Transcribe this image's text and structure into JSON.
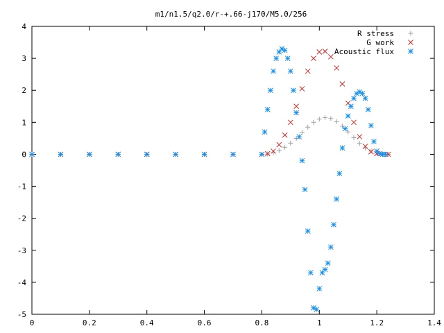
{
  "chart_data": {
    "type": "scatter",
    "title": "m1/n1.5/q2.0/r-+.66-j170/M5.0/256",
    "xlabel": "",
    "ylabel": "",
    "xlim": [
      0,
      1.4
    ],
    "ylim": [
      -5,
      4
    ],
    "x_ticks": [
      "0",
      "0.2",
      "0.4",
      "0.6",
      "0.8",
      "1",
      "1.2",
      "1.4"
    ],
    "y_ticks": [
      "4",
      "3",
      "2",
      "1",
      "0",
      "-1",
      "-2",
      "-3",
      "-4",
      "-5"
    ],
    "grid": false,
    "legend_position": "top-right",
    "series": [
      {
        "name": "R stress",
        "marker": "plus",
        "color": "#a0a0a0",
        "x": [
          0.0,
          0.1,
          0.2,
          0.3,
          0.4,
          0.5,
          0.6,
          0.7,
          0.8,
          0.82,
          0.84,
          0.86,
          0.88,
          0.9,
          0.92,
          0.94,
          0.96,
          0.98,
          1.0,
          1.02,
          1.04,
          1.06,
          1.08,
          1.1,
          1.12,
          1.14,
          1.16,
          1.18,
          1.2,
          1.22,
          1.24
        ],
        "y": [
          0,
          0,
          0,
          0,
          0,
          0,
          0,
          0,
          0,
          0.01,
          0.05,
          0.12,
          0.22,
          0.35,
          0.5,
          0.68,
          0.85,
          1.0,
          1.1,
          1.15,
          1.12,
          1.02,
          0.88,
          0.7,
          0.52,
          0.34,
          0.2,
          0.1,
          0.04,
          0.01,
          0
        ]
      },
      {
        "name": "G work",
        "marker": "cross",
        "color": "#cc2a2a",
        "x": [
          0.0,
          0.1,
          0.2,
          0.3,
          0.4,
          0.5,
          0.6,
          0.7,
          0.8,
          0.82,
          0.84,
          0.86,
          0.88,
          0.9,
          0.92,
          0.94,
          0.96,
          0.98,
          1.0,
          1.02,
          1.04,
          1.06,
          1.08,
          1.1,
          1.12,
          1.14,
          1.16,
          1.18,
          1.2,
          1.22,
          1.24
        ],
        "y": [
          0,
          0,
          0,
          0,
          0,
          0,
          0,
          0,
          0,
          0.02,
          0.1,
          0.3,
          0.6,
          1.0,
          1.5,
          2.05,
          2.6,
          3.0,
          3.2,
          3.22,
          3.05,
          2.7,
          2.2,
          1.6,
          1.0,
          0.55,
          0.25,
          0.08,
          0.02,
          0,
          0
        ]
      },
      {
        "name": "Acoustic flux",
        "marker": "star",
        "color": "#1a8ee6",
        "x": [
          0.0,
          0.1,
          0.2,
          0.3,
          0.4,
          0.5,
          0.6,
          0.7,
          0.8,
          0.81,
          0.82,
          0.83,
          0.84,
          0.85,
          0.86,
          0.87,
          0.88,
          0.89,
          0.9,
          0.91,
          0.92,
          0.93,
          0.94,
          0.95,
          0.96,
          0.97,
          0.98,
          0.99,
          1.0,
          1.01,
          1.02,
          1.03,
          1.04,
          1.05,
          1.06,
          1.07,
          1.08,
          1.09,
          1.1,
          1.11,
          1.12,
          1.13,
          1.14,
          1.15,
          1.16,
          1.17,
          1.18,
          1.19,
          1.2,
          1.21,
          1.22,
          1.23
        ],
        "y": [
          0,
          0,
          0,
          0,
          0,
          0,
          0,
          0,
          0,
          0.7,
          1.4,
          2.0,
          2.6,
          3.0,
          3.2,
          3.3,
          3.25,
          3.0,
          2.6,
          2.0,
          1.3,
          0.55,
          -0.2,
          -1.1,
          -2.4,
          -3.7,
          -4.8,
          -4.85,
          -4.2,
          -3.7,
          -3.6,
          -3.4,
          -2.9,
          -2.2,
          -1.4,
          -0.6,
          0.2,
          0.8,
          1.2,
          1.5,
          1.75,
          1.9,
          1.95,
          1.9,
          1.75,
          1.4,
          0.9,
          0.4,
          0.1,
          0.02,
          0,
          0
        ]
      }
    ]
  }
}
